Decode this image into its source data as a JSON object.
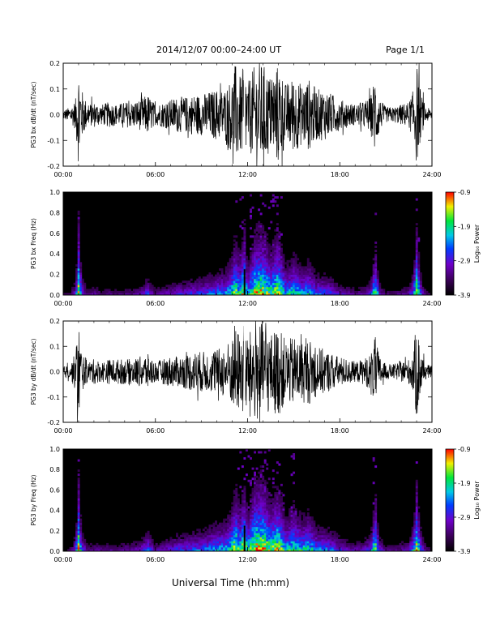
{
  "header": {
    "title": "2014/12/07  00:00–24:00 UT",
    "page": "Page 1/1"
  },
  "footer": {
    "xlabel": "Universal Time (hh:mm)"
  },
  "chart_data": [
    {
      "type": "line",
      "ylabel": "PG3 bx dB/dt (nT/sec)",
      "x_ticks": [
        "00:00",
        "06:00",
        "12:00",
        "18:00",
        "24:00"
      ],
      "y_ticks": [
        "0.2",
        "0.1",
        "0.0",
        "-0.1",
        "-0.2"
      ],
      "xlim": [
        0,
        24
      ],
      "ylim": [
        -0.2,
        0.2
      ],
      "series": [
        {
          "color": "#000000",
          "x": [
            0,
            0.5,
            0.8,
            1.0,
            1.2,
            1.6,
            2.0,
            2.5,
            3.0,
            3.5,
            4.0,
            4.5,
            5.0,
            5.5,
            6.0,
            6.5,
            7.0,
            7.5,
            8.0,
            8.5,
            9.0,
            9.5,
            10.0,
            10.5,
            11.0,
            11.2,
            11.5,
            11.8,
            12.0,
            12.5,
            13.0,
            13.5,
            14.0,
            14.5,
            15.0,
            15.5,
            16.0,
            16.5,
            17.0,
            17.5,
            18.0,
            18.5,
            19.0,
            19.5,
            20.0,
            20.3,
            20.6,
            21.0,
            21.5,
            22.0,
            22.5,
            22.8,
            23.0,
            23.3,
            23.6,
            24.0
          ],
          "amplitude": [
            0.02,
            0.03,
            0.06,
            0.2,
            0.1,
            0.04,
            0.05,
            0.04,
            0.05,
            0.04,
            0.05,
            0.05,
            0.06,
            0.08,
            0.04,
            0.05,
            0.06,
            0.07,
            0.07,
            0.08,
            0.08,
            0.09,
            0.1,
            0.1,
            0.15,
            0.2,
            0.15,
            0.2,
            0.12,
            0.2,
            0.2,
            0.15,
            0.2,
            0.12,
            0.15,
            0.12,
            0.14,
            0.1,
            0.1,
            0.08,
            0.06,
            0.05,
            0.04,
            0.05,
            0.07,
            0.16,
            0.06,
            0.03,
            0.03,
            0.04,
            0.05,
            0.1,
            0.2,
            0.08,
            0.03,
            0.02
          ]
        }
      ]
    },
    {
      "type": "heatmap",
      "ylabel": "PG3 bx Freq (Hz)",
      "x_ticks": [
        "00:00",
        "06:00",
        "12:00",
        "18:00",
        "24:00"
      ],
      "y_ticks": [
        "1.0",
        "0.8",
        "0.6",
        "0.4",
        "0.2",
        "0.0"
      ],
      "xlim": [
        0,
        24
      ],
      "ylim": [
        0,
        1.0
      ],
      "colorbar": {
        "label": "Log₁₀ Power",
        "ticks": [
          "-0.9",
          "-1.9",
          "-2.9",
          "-3.9"
        ],
        "range": [
          -3.9,
          -0.9
        ]
      },
      "activity": {
        "x": [
          0,
          0.5,
          0.8,
          1.0,
          1.2,
          1.6,
          2.0,
          2.5,
          3.0,
          3.5,
          4.0,
          4.5,
          5.0,
          5.5,
          6.0,
          6.5,
          7.0,
          7.5,
          8.0,
          8.5,
          9.0,
          9.5,
          10.0,
          10.5,
          11.0,
          11.2,
          11.5,
          11.8,
          12.0,
          12.5,
          13.0,
          13.5,
          14.0,
          14.5,
          15.0,
          15.5,
          16.0,
          16.5,
          17.0,
          17.5,
          18.0,
          18.5,
          19.0,
          19.5,
          20.0,
          20.3,
          20.6,
          21.0,
          21.5,
          22.0,
          22.5,
          22.8,
          23.0,
          23.3,
          23.6,
          24.0
        ],
        "level": [
          0.15,
          0.2,
          0.4,
          0.95,
          0.5,
          0.2,
          0.3,
          0.2,
          0.25,
          0.2,
          0.25,
          0.25,
          0.3,
          0.45,
          0.25,
          0.3,
          0.35,
          0.4,
          0.4,
          0.45,
          0.45,
          0.5,
          0.55,
          0.55,
          0.7,
          0.85,
          0.7,
          0.9,
          0.6,
          0.9,
          0.9,
          0.75,
          0.9,
          0.6,
          0.7,
          0.6,
          0.65,
          0.5,
          0.5,
          0.45,
          0.35,
          0.3,
          0.25,
          0.3,
          0.4,
          0.8,
          0.35,
          0.2,
          0.2,
          0.25,
          0.3,
          0.55,
          0.9,
          0.45,
          0.2,
          0.15
        ]
      },
      "gap_hours": 11.8
    },
    {
      "type": "line",
      "ylabel": "PG3 by dB/dt (nT/sec)",
      "x_ticks": [
        "00:00",
        "06:00",
        "12:00",
        "18:00",
        "24:00"
      ],
      "y_ticks": [
        "0.2",
        "0.1",
        "0.0",
        "-0.1",
        "-0.2"
      ],
      "xlim": [
        0,
        24
      ],
      "ylim": [
        -0.2,
        0.2
      ],
      "series": [
        {
          "color": "#000000",
          "x": [
            0,
            0.5,
            0.8,
            1.0,
            1.2,
            1.6,
            2.0,
            2.5,
            3.0,
            3.5,
            4.0,
            4.5,
            5.0,
            5.5,
            6.0,
            6.5,
            7.0,
            7.5,
            8.0,
            8.5,
            9.0,
            9.5,
            10.0,
            10.5,
            11.0,
            11.2,
            11.5,
            11.8,
            12.0,
            12.5,
            13.0,
            13.5,
            14.0,
            14.5,
            15.0,
            15.5,
            16.0,
            16.5,
            17.0,
            17.5,
            18.0,
            18.5,
            19.0,
            19.5,
            20.0,
            20.3,
            20.6,
            21.0,
            21.5,
            22.0,
            22.5,
            22.8,
            23.0,
            23.3,
            23.6,
            24.0
          ],
          "amplitude": [
            0.02,
            0.03,
            0.08,
            0.2,
            0.08,
            0.04,
            0.05,
            0.04,
            0.05,
            0.05,
            0.05,
            0.05,
            0.06,
            0.07,
            0.04,
            0.05,
            0.06,
            0.06,
            0.07,
            0.08,
            0.08,
            0.08,
            0.09,
            0.1,
            0.14,
            0.2,
            0.14,
            0.2,
            0.14,
            0.2,
            0.2,
            0.15,
            0.18,
            0.12,
            0.14,
            0.12,
            0.13,
            0.1,
            0.09,
            0.07,
            0.06,
            0.05,
            0.04,
            0.05,
            0.07,
            0.14,
            0.06,
            0.03,
            0.03,
            0.04,
            0.05,
            0.09,
            0.2,
            0.08,
            0.03,
            0.02
          ]
        }
      ]
    },
    {
      "type": "heatmap",
      "ylabel": "PG3 by Freq (Hz)",
      "x_ticks": [
        "00:00",
        "06:00",
        "12:00",
        "18:00",
        "24:00"
      ],
      "y_ticks": [
        "1.0",
        "0.8",
        "0.6",
        "0.4",
        "0.2",
        "0.0"
      ],
      "xlim": [
        0,
        24
      ],
      "ylim": [
        0,
        1.0
      ],
      "colorbar": {
        "label": "Log₁₀ Power",
        "ticks": [
          "-0.9",
          "-1.9",
          "-2.9",
          "-3.9"
        ],
        "range": [
          -3.9,
          -0.9
        ]
      },
      "activity": {
        "x": [
          0,
          0.5,
          0.8,
          1.0,
          1.2,
          1.6,
          2.0,
          2.5,
          3.0,
          3.5,
          4.0,
          4.5,
          5.0,
          5.5,
          6.0,
          6.5,
          7.0,
          7.5,
          8.0,
          8.5,
          9.0,
          9.5,
          10.0,
          10.5,
          11.0,
          11.2,
          11.5,
          11.8,
          12.0,
          12.5,
          13.0,
          13.5,
          14.0,
          14.5,
          15.0,
          15.5,
          16.0,
          16.5,
          17.0,
          17.5,
          18.0,
          18.5,
          19.0,
          19.5,
          20.0,
          20.3,
          20.6,
          21.0,
          21.5,
          22.0,
          22.5,
          22.8,
          23.0,
          23.3,
          23.6,
          24.0
        ],
        "level": [
          0.15,
          0.2,
          0.45,
          0.95,
          0.5,
          0.25,
          0.3,
          0.25,
          0.3,
          0.25,
          0.3,
          0.3,
          0.35,
          0.5,
          0.3,
          0.35,
          0.4,
          0.45,
          0.45,
          0.5,
          0.5,
          0.55,
          0.6,
          0.6,
          0.75,
          0.9,
          0.75,
          0.9,
          0.7,
          0.95,
          0.95,
          0.8,
          0.9,
          0.65,
          0.75,
          0.65,
          0.7,
          0.55,
          0.55,
          0.5,
          0.4,
          0.35,
          0.3,
          0.35,
          0.45,
          0.85,
          0.4,
          0.25,
          0.25,
          0.3,
          0.35,
          0.6,
          0.9,
          0.5,
          0.25,
          0.15
        ]
      },
      "gap_hours": 11.8
    }
  ]
}
